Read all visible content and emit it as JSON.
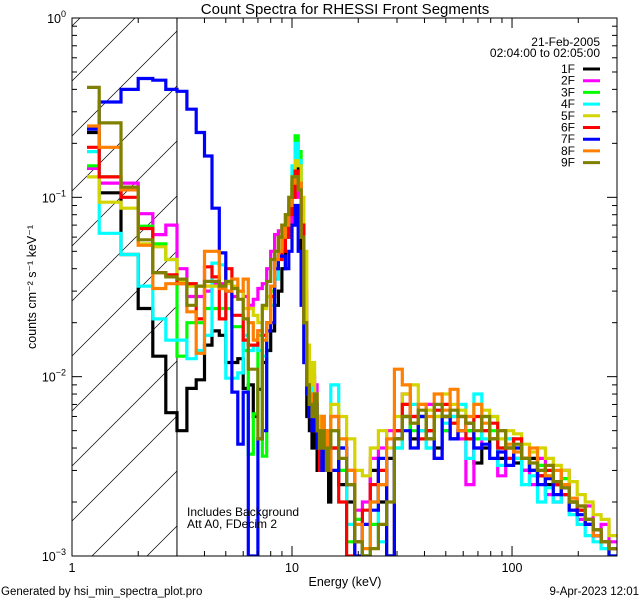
{
  "chart_data": {
    "type": "line",
    "title": "Count Spectra for RHESSI Front Segments",
    "xlabel": "Energy (keV)",
    "ylabel": "counts cm⁻² s⁻¹ keV⁻¹",
    "xscale": "log",
    "yscale": "log",
    "xlim": [
      1,
      300
    ],
    "ylim": [
      0.001,
      1
    ],
    "x_ticks": [
      {
        "value": 1,
        "label": "1"
      },
      {
        "value": 10,
        "label": "10"
      },
      {
        "value": 100,
        "label": "100"
      }
    ],
    "y_ticks": [
      {
        "value": 0.001,
        "base": "10",
        "exp": "−3"
      },
      {
        "value": 0.01,
        "base": "10",
        "exp": "−2"
      },
      {
        "value": 0.1,
        "base": "10",
        "exp": "−1"
      },
      {
        "value": 1,
        "base": "10",
        "exp": "0"
      }
    ],
    "grid": false,
    "legend_position": "top-right",
    "date": "21-Feb-2005",
    "time_range": "02:04:00 to 02:05:00",
    "annotations": [
      "Includes Background",
      "Att A0, FDecim 2"
    ],
    "excluded_region_keV": [
      1,
      3
    ],
    "bin_edges_keV": [
      1.17,
      1.33,
      1.67,
      2,
      2.33,
      2.67,
      3,
      3.33,
      3.67,
      4,
      4.33,
      4.67,
      5,
      5.33,
      5.67,
      6,
      6.33,
      6.67,
      7,
      7.33,
      7.67,
      8,
      8.33,
      8.67,
      9,
      9.33,
      9.67,
      10,
      10.33,
      10.67,
      11,
      11.33,
      11.67,
      12,
      12.33,
      12.67,
      13,
      13.33,
      13.67,
      14,
      14.33,
      14.67,
      15,
      16.3,
      17.7,
      19.3,
      20.9,
      22.7,
      24.7,
      26.9,
      29.2,
      31.7,
      34.5,
      37.5,
      40.7,
      44.3,
      48.1,
      52.3,
      56.8,
      61.7,
      67.1,
      72.9,
      79.2,
      86.1,
      93.6,
      101.7,
      110.5,
      120.1,
      130.5,
      141.8,
      154.1,
      167.5,
      182,
      197.8,
      215,
      233.6,
      253.9,
      275.9,
      300
    ],
    "series": [
      {
        "name": "1F",
        "color": "#000000",
        "values": [
          0.23,
          0.106,
          0.048,
          0.024,
          0.013,
          0.0063,
          0.005,
          0.0086,
          0.0096,
          0.015,
          0.018,
          0.017,
          0.012,
          0.012,
          0.0126,
          0.0086,
          0.009,
          0.006,
          0.0085,
          0.012,
          0.014,
          0.018,
          0.025,
          0.03,
          0.04,
          0.06,
          0.09,
          0.12,
          0.15,
          0.11,
          0.05,
          0.012,
          0.006,
          0.005,
          0.004,
          0.006,
          0.003,
          0.004,
          0.003,
          0.003,
          0.004,
          0.002,
          0.004,
          0.0025,
          0.002,
          0.0012,
          0.0009,
          0.003,
          0.002,
          0.0035,
          0.005,
          0.006,
          0.0045,
          0.006,
          0.005,
          0.004,
          0.006,
          0.0045,
          0.005,
          0.005,
          0.0033,
          0.004,
          0.0045,
          0.0035,
          0.004,
          0.0033,
          0.003,
          0.0035,
          0.0028,
          0.0025,
          0.0025,
          0.0022,
          0.002,
          0.0018,
          0.0016,
          0.0013,
          0.0012,
          0.0011
        ]
      },
      {
        "name": "2F",
        "color": "#ff00ff",
        "values": [
          0.145,
          0.12,
          0.12,
          0.081,
          0.062,
          0.07,
          0.04,
          0.028,
          0.028,
          0.03,
          0.033,
          0.033,
          0.03,
          0.028,
          0.03,
          0.028,
          0.025,
          0.027,
          0.031,
          0.033,
          0.04,
          0.05,
          0.062,
          0.065,
          0.07,
          0.06,
          0.07,
          0.1,
          0.13,
          0.1,
          0.07,
          0.03,
          0.012,
          0.008,
          0.01,
          0.009,
          0.006,
          0.005,
          0.006,
          0.004,
          0.005,
          0.004,
          0.006,
          0.004,
          0.003,
          0.0018,
          0.002,
          0.0035,
          0.004,
          0.005,
          0.0045,
          0.008,
          0.006,
          0.005,
          0.007,
          0.0035,
          0.005,
          0.006,
          0.0045,
          0.0025,
          0.004,
          0.005,
          0.0045,
          0.0028,
          0.004,
          0.0035,
          0.003,
          0.0025,
          0.0035,
          0.0022,
          0.002,
          0.003,
          0.0018,
          0.0016,
          0.0019,
          0.0013,
          0.0015,
          0.0012
        ]
      },
      {
        "name": "3F",
        "color": "#00ff00",
        "values": [
          0.15,
          0.13,
          0.11,
          0.069,
          0.055,
          0.045,
          0.013,
          0.02,
          0.02,
          0.024,
          0.024,
          0.024,
          0.024,
          0.019,
          0.019,
          0.014,
          0.0037,
          0.0062,
          0.017,
          0.0036,
          0.02,
          0.03,
          0.04,
          0.05,
          0.06,
          0.07,
          0.09,
          0.12,
          0.22,
          0.18,
          0.08,
          0.02,
          0.008,
          0.006,
          0.007,
          0.005,
          0.004,
          0.006,
          0.003,
          0.005,
          0.004,
          0.003,
          0.005,
          0.003,
          0.0012,
          0.0016,
          0.0008,
          0.0015,
          0.0025,
          0.0009,
          0.004,
          0.007,
          0.005,
          0.006,
          0.004,
          0.006,
          0.005,
          0.0055,
          0.006,
          0.005,
          0.0045,
          0.006,
          0.005,
          0.004,
          0.0045,
          0.004,
          0.0035,
          0.003,
          0.0032,
          0.0028,
          0.0025,
          0.0027,
          0.002,
          0.0018,
          0.0015,
          0.0014,
          0.0012,
          0.001
        ]
      },
      {
        "name": "4F",
        "color": "#00ffff",
        "values": [
          0.18,
          0.063,
          0.048,
          0.032,
          0.021,
          0.016,
          0.016,
          0.0126,
          0.014,
          0.017,
          0.043,
          0.042,
          0.0098,
          0.0098,
          0.0105,
          0.017,
          0.014,
          0.015,
          0.014,
          0.013,
          0.02,
          0.025,
          0.035,
          0.05,
          0.06,
          0.08,
          0.1,
          0.15,
          0.2,
          0.16,
          0.08,
          0.02,
          0.01,
          0.007,
          0.009,
          0.006,
          0.004,
          0.005,
          0.003,
          0.004,
          0.005,
          0.003,
          0.009,
          0.004,
          0.0015,
          0.0012,
          0.0008,
          0.002,
          0.0012,
          0.0009,
          0.004,
          0.006,
          0.007,
          0.005,
          0.004,
          0.0065,
          0.0055,
          0.006,
          0.007,
          0.0035,
          0.008,
          0.0045,
          0.006,
          0.0032,
          0.0045,
          0.0035,
          0.0025,
          0.0028,
          0.002,
          0.0024,
          0.002,
          0.0022,
          0.0017,
          0.0015,
          0.0013,
          0.0012,
          0.0011,
          0.001
        ]
      },
      {
        "name": "5F",
        "color": "#d4d400",
        "values": [
          0.13,
          0.094,
          0.087,
          0.055,
          0.053,
          0.045,
          0.034,
          0.032,
          0.032,
          0.032,
          0.032,
          0.032,
          0.033,
          0.032,
          0.03,
          0.024,
          0.024,
          0.022,
          0.02,
          0.024,
          0.028,
          0.032,
          0.045,
          0.06,
          0.07,
          0.08,
          0.1,
          0.13,
          0.16,
          0.15,
          0.1,
          0.05,
          0.015,
          0.009,
          0.012,
          0.008,
          0.006,
          0.005,
          0.006,
          0.004,
          0.005,
          0.004,
          0.007,
          0.006,
          0.0045,
          0.003,
          0.0028,
          0.004,
          0.005,
          0.004,
          0.006,
          0.008,
          0.009,
          0.007,
          0.0065,
          0.006,
          0.008,
          0.007,
          0.0065,
          0.0055,
          0.007,
          0.0065,
          0.006,
          0.0045,
          0.005,
          0.0048,
          0.0042,
          0.0038,
          0.004,
          0.0035,
          0.0032,
          0.003,
          0.0026,
          0.0022,
          0.002,
          0.0017,
          0.0016,
          0.0013
        ]
      },
      {
        "name": "6F",
        "color": "#ff0000",
        "values": [
          0.19,
          0.13,
          0.1,
          0.067,
          0.038,
          0.037,
          0.033,
          0.033,
          0.021,
          0.041,
          0.036,
          0.021,
          0.04,
          0.022,
          0.022,
          0.016,
          0.015,
          0.015,
          0.018,
          0.017,
          0.02,
          0.028,
          0.04,
          0.045,
          0.05,
          0.06,
          0.08,
          0.1,
          0.14,
          0.12,
          0.07,
          0.02,
          0.008,
          0.006,
          0.005,
          0.006,
          0.004,
          0.003,
          0.005,
          0.004,
          0.003,
          0.003,
          0.004,
          0.002,
          0.0007,
          0.0012,
          0.0018,
          0.0025,
          0.003,
          0.0008,
          0.005,
          0.007,
          0.006,
          0.0045,
          0.005,
          0.0065,
          0.007,
          0.0055,
          0.006,
          0.0045,
          0.006,
          0.005,
          0.0055,
          0.004,
          0.0035,
          0.0045,
          0.0035,
          0.003,
          0.0028,
          0.003,
          0.0025,
          0.0022,
          0.002,
          0.0018,
          0.0015,
          0.0014,
          0.0012,
          0.0011
        ]
      },
      {
        "name": "7F",
        "color": "#0000ff",
        "values": [
          0.24,
          0.34,
          0.4,
          0.46,
          0.45,
          0.4,
          0.39,
          0.31,
          0.23,
          0.17,
          0.087,
          0.049,
          0.03,
          0.0082,
          0.0042,
          0.0082,
          0.0009,
          0.0009,
          0.0045,
          0.005,
          0.018,
          0.02,
          0.04,
          0.047,
          0.047,
          0.04,
          0.05,
          0.07,
          0.09,
          0.05,
          0.025,
          0.012,
          0.008,
          0.006,
          0.005,
          0.007,
          0.004,
          0.005,
          0.003,
          0.005,
          0.004,
          0.003,
          0.003,
          0.004,
          0.0025,
          0.0009,
          0.0015,
          0.0018,
          0.0035,
          0.0009,
          0.0045,
          0.005,
          0.004,
          0.006,
          0.0045,
          0.0035,
          0.006,
          0.0045,
          0.005,
          0.0055,
          0.004,
          0.0042,
          0.0035,
          0.0038,
          0.0032,
          0.004,
          0.0035,
          0.003,
          0.0025,
          0.0027,
          0.0022,
          0.0024,
          0.0018,
          0.0017,
          0.0015,
          0.0013,
          0.0012,
          0.001
        ]
      },
      {
        "name": "8F",
        "color": "#ff8000",
        "values": [
          0.25,
          0.19,
          0.11,
          0.054,
          0.031,
          0.033,
          0.033,
          0.023,
          0.0135,
          0.05,
          0.05,
          0.031,
          0.03,
          0.035,
          0.03,
          0.035,
          0.02,
          0.016,
          0.018,
          0.016,
          0.02,
          0.032,
          0.045,
          0.05,
          0.06,
          0.07,
          0.09,
          0.12,
          0.13,
          0.12,
          0.06,
          0.02,
          0.009,
          0.007,
          0.008,
          0.006,
          0.005,
          0.004,
          0.006,
          0.004,
          0.005,
          0.003,
          0.006,
          0.0045,
          0.003,
          0.0015,
          0.0011,
          0.002,
          0.0025,
          0.0045,
          0.011,
          0.009,
          0.0055,
          0.007,
          0.006,
          0.008,
          0.0065,
          0.0085,
          0.005,
          0.006,
          0.007,
          0.0055,
          0.0045,
          0.005,
          0.0042,
          0.0038,
          0.0035,
          0.004,
          0.003,
          0.0028,
          0.003,
          0.0025,
          0.0021,
          0.0019,
          0.0016,
          0.0013,
          0.0012,
          0.0011
        ]
      },
      {
        "name": "9F",
        "color": "#808000",
        "values": [
          0.41,
          0.26,
          0.114,
          0.058,
          0.038,
          0.036,
          0.035,
          0.025,
          0.032,
          0.034,
          0.034,
          0.032,
          0.034,
          0.031,
          0.027,
          0.021,
          0.011,
          0.011,
          0.0045,
          0.025,
          0.034,
          0.045,
          0.05,
          0.06,
          0.07,
          0.08,
          0.1,
          0.13,
          0.13,
          0.11,
          0.06,
          0.02,
          0.009,
          0.007,
          0.006,
          0.008,
          0.005,
          0.004,
          0.005,
          0.004,
          0.003,
          0.004,
          0.005,
          0.0035,
          0.0025,
          0.0012,
          0.0009,
          0.0011,
          0.0015,
          0.002,
          0.0045,
          0.006,
          0.0055,
          0.0065,
          0.0045,
          0.007,
          0.006,
          0.0065,
          0.006,
          0.0055,
          0.005,
          0.006,
          0.0045,
          0.005,
          0.004,
          0.0042,
          0.0035,
          0.0033,
          0.003,
          0.0032,
          0.0026,
          0.0024,
          0.002,
          0.0019,
          0.0016,
          0.0014,
          0.0012,
          0.0011
        ]
      }
    ]
  },
  "footer": {
    "generated_by": "Generated by hsi_min_spectra_plot.pro",
    "timestamp": "9-Apr-2023 12:01"
  }
}
